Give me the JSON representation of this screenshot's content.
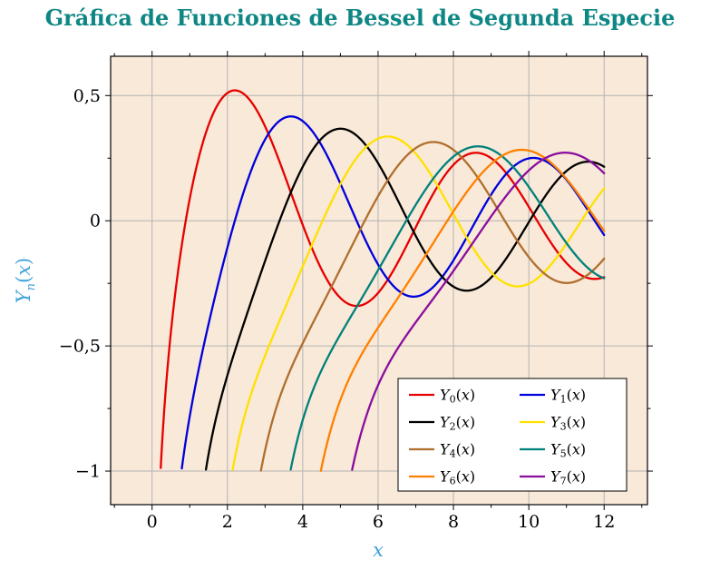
{
  "header": {
    "title": "Gráfica de Funciones de Bessel de Segunda Especie"
  },
  "theme": {
    "page_bg": "#ffffff",
    "title_color": "#0e8784",
    "axis_label_color": "#41a3da",
    "plot_bg": "#f9e9d8",
    "grid_color": "#b3b3b3",
    "axis_color": "#000000",
    "tick_label_color": "#000000",
    "legend_bg": "#ffffff",
    "legend_border": "#000000"
  },
  "axis": {
    "x_label": "x",
    "y_base": "Y",
    "y_sub": "n",
    "y_open": "(",
    "y_var": "x",
    "y_close": ")"
  },
  "chart_data": {
    "type": "line",
    "title": "Gráfica de Funciones de Bessel de Segunda Especie",
    "xlabel": "x",
    "ylabel": "Y_n(x)",
    "function_family": "Bessel functions of the second kind Y_n(x), orders n = 0..7, plotted for x up to 12, clipped below at y ≈ -1",
    "xlim": [
      -1.1,
      13.15
    ],
    "ylim": [
      -1.134,
      0.657
    ],
    "x_ticks": [
      0,
      2,
      4,
      6,
      8,
      10,
      12
    ],
    "x_tick_labels": [
      "0",
      "2",
      "4",
      "6",
      "8",
      "10",
      "12"
    ],
    "y_ticks": [
      0.5,
      0,
      -0.5,
      -1
    ],
    "y_tick_labels": [
      "0,5",
      "0",
      "−0,5",
      "−1"
    ],
    "x_minor_step": 1,
    "y_minor_step": 0.25,
    "grid": "major",
    "sample": {
      "x_start": 0.02,
      "x_end": 12,
      "x_step": 0.01
    },
    "clip_y_min": -1.0,
    "legend": {
      "position": "south east",
      "columns": 2
    },
    "series": [
      {
        "label": "Y_0(x)",
        "base": "Y",
        "sub": "0",
        "var": "x",
        "order": 0,
        "color": "#e60000",
        "first_peak": {
          "x": 2.2,
          "y": 0.521
        }
      },
      {
        "label": "Y_1(x)",
        "base": "Y",
        "sub": "1",
        "var": "x",
        "order": 1,
        "color": "#0000dc",
        "first_peak": {
          "x": 3.68,
          "y": 0.417
        }
      },
      {
        "label": "Y_2(x)",
        "base": "Y",
        "sub": "2",
        "var": "x",
        "order": 2,
        "color": "#000000",
        "first_peak": {
          "x": 5.03,
          "y": 0.367
        }
      },
      {
        "label": "Y_3(x)",
        "base": "Y",
        "sub": "3",
        "var": "x",
        "order": 3,
        "color": "#ffe100",
        "first_peak": {
          "x": 6.35,
          "y": 0.335
        }
      },
      {
        "label": "Y_4(x)",
        "base": "Y",
        "sub": "4",
        "var": "x",
        "order": 4,
        "color": "#b06e2e",
        "first_peak": {
          "x": 7.65,
          "y": 0.311
        }
      },
      {
        "label": "Y_5(x)",
        "base": "Y",
        "sub": "5",
        "var": "x",
        "order": 5,
        "color": "#00817c",
        "first_peak": {
          "x": 8.93,
          "y": 0.293
        }
      },
      {
        "label": "Y_6(x)",
        "base": "Y",
        "sub": "6",
        "var": "x",
        "order": 6,
        "color": "#ff8000",
        "first_peak": {
          "x": 10.18,
          "y": 0.278
        }
      },
      {
        "label": "Y_7(x)",
        "base": "Y",
        "sub": "7",
        "var": "x",
        "order": 7,
        "color": "#8a0d9e",
        "first_peak": {
          "x": 11.42,
          "y": 0.266
        }
      }
    ]
  }
}
